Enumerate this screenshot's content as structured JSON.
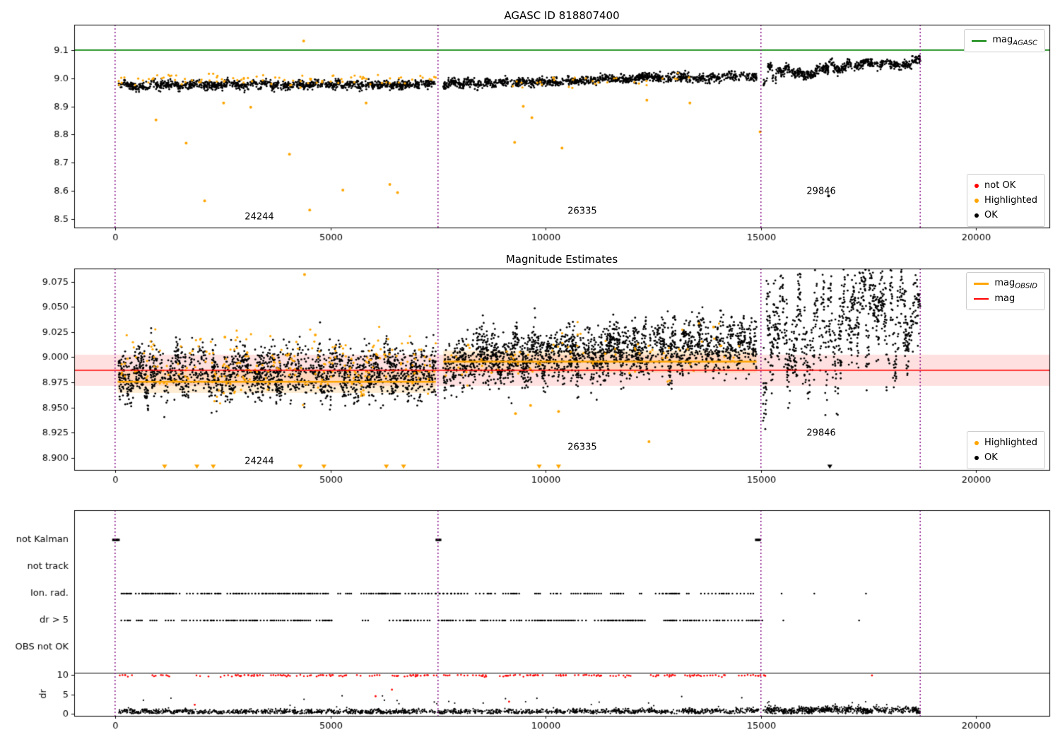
{
  "colors": {
    "ok": "#000000",
    "highlighted": "#FFA500",
    "not_ok": "#FF0000",
    "mag_agasc_line": "#008000",
    "mag_line": "#FF0000",
    "mag_obsid_line": "#FFA500",
    "vline": "#800080"
  },
  "chart_data": [
    {
      "type": "scatter",
      "title": "AGASC ID 818807400",
      "xlim": [
        -950,
        21700
      ],
      "ylim": [
        8.47,
        9.19
      ],
      "xticks": [
        0,
        5000,
        10000,
        15000,
        20000
      ],
      "yticks": [
        8.5,
        8.6,
        8.7,
        8.8,
        8.9,
        9.0,
        9.1
      ],
      "ytick_labels": [
        "8.5",
        "8.6",
        "8.7",
        "8.8",
        "8.9",
        "9.0",
        "9.1"
      ],
      "vlines": [
        0,
        7500,
        15000,
        18700
      ],
      "hlines": [
        {
          "y": 9.1,
          "color_key": "mag_agasc_line"
        }
      ],
      "legend_top": {
        "items": [
          {
            "label_main": "mag",
            "label_sub": "AGASC"
          }
        ]
      },
      "legend_bottom": {
        "items": [
          {
            "label": "not OK",
            "role": "not_ok"
          },
          {
            "label": "Highlighted",
            "role": "highlighted"
          },
          {
            "label": "OK",
            "role": "ok"
          }
        ]
      },
      "annotations": [
        {
          "text": "24244",
          "x": 3350,
          "y": 8.508
        },
        {
          "text": "26335",
          "x": 10850,
          "y": 8.527
        },
        {
          "text": "29846",
          "x": 16400,
          "y": 8.597
        }
      ],
      "series": [
        {
          "role": "ok",
          "kind": "clusters",
          "seed": 11,
          "n": 1150,
          "x0": 80,
          "x1": 7450,
          "mean0": 8.9745,
          "mean1": 8.978,
          "cluster_sigma": 0.004,
          "point_sigma": 0.0075,
          "clusters": 60
        },
        {
          "role": "ok",
          "kind": "clusters",
          "seed": 12,
          "n": 1150,
          "x0": 7620,
          "x1": 14900,
          "mean0": 8.982,
          "mean1": 9.006,
          "cluster_sigma": 0.0045,
          "point_sigma": 0.0075,
          "clusters": 60
        },
        {
          "role": "ok",
          "kind": "clusters",
          "seed": 13,
          "n": 650,
          "x0": 15050,
          "x1": 18700,
          "mean0": 9.018,
          "mean1": 9.06,
          "cluster_sigma": 0.011,
          "point_sigma": 0.008,
          "clusters": 36
        },
        {
          "role": "highlighted",
          "kind": "clusters",
          "seed": 14,
          "n": 100,
          "x0": 80,
          "x1": 7450,
          "mean0": 8.995,
          "mean1": 8.998,
          "cluster_sigma": 0.006,
          "point_sigma": 0.009,
          "clusters": 26
        },
        {
          "role": "highlighted",
          "kind": "clusters",
          "seed": 15,
          "n": 30,
          "x0": 9200,
          "x1": 13500,
          "mean0": 8.99,
          "mean1": 8.995,
          "cluster_sigma": 0.006,
          "point_sigma": 0.008,
          "clusters": 12
        },
        {
          "role": "highlighted",
          "kind": "points",
          "points": [
            [
              950,
              8.852
            ],
            [
              1650,
              8.77
            ],
            [
              2080,
              8.565
            ],
            [
              2520,
              8.912
            ],
            [
              3150,
              8.897
            ],
            [
              4050,
              8.73
            ],
            [
              4380,
              9.132
            ],
            [
              4520,
              8.532
            ],
            [
              5290,
              8.603
            ],
            [
              5830,
              8.912
            ],
            [
              6380,
              8.623
            ],
            [
              6560,
              8.594
            ],
            [
              9280,
              8.772
            ],
            [
              9480,
              8.9
            ],
            [
              9680,
              8.86
            ],
            [
              10380,
              8.752
            ],
            [
              12350,
              8.922
            ],
            [
              13350,
              8.912
            ],
            [
              14980,
              8.81
            ]
          ]
        },
        {
          "role": "ok",
          "kind": "points",
          "points": [
            [
              16570,
              8.582
            ]
          ]
        }
      ]
    },
    {
      "type": "scatter",
      "title": "Magnitude Estimates",
      "xlim": [
        -950,
        21700
      ],
      "ylim": [
        8.888,
        9.088
      ],
      "xticks": [
        0,
        5000,
        10000,
        15000,
        20000
      ],
      "yticks": [
        8.9,
        8.925,
        8.95,
        8.975,
        9.0,
        9.025,
        9.05,
        9.075
      ],
      "ytick_labels": [
        "8.900",
        "8.925",
        "8.950",
        "8.975",
        "9.000",
        "9.025",
        "9.050",
        "9.075"
      ],
      "vlines": [
        0,
        7500,
        15000,
        18700
      ],
      "bands": [
        {
          "y0": 8.9715,
          "y1": 9.0025,
          "color": "rgba(255,0,0,0.12)"
        },
        {
          "x0": 60,
          "x1": 7450,
          "y0": 8.9645,
          "y1": 8.9865,
          "color": "rgba(255,185,80,0.25)"
        },
        {
          "x0": 7620,
          "x1": 14900,
          "y0": 8.9845,
          "y1": 9.0065,
          "color": "rgba(255,185,80,0.25)"
        }
      ],
      "hlines": [
        {
          "y": 8.987,
          "color_key": "mag_line"
        }
      ],
      "line_segments": [
        {
          "x0": 60,
          "x1": 7450,
          "y": 8.9755,
          "color_key": "mag_obsid_line"
        },
        {
          "x0": 7620,
          "x1": 14900,
          "y": 8.9955,
          "color_key": "mag_obsid_line"
        }
      ],
      "legend_top": {
        "items": [
          {
            "label_main": "mag",
            "label_sub": "OBSID"
          },
          {
            "label_main": "mag",
            "label_sub": ""
          }
        ]
      },
      "legend_bottom": {
        "items": [
          {
            "label": "Highlighted",
            "role": "highlighted"
          },
          {
            "label": "OK",
            "role": "ok"
          }
        ]
      },
      "annotations": [
        {
          "text": "24244",
          "x": 3350,
          "y": 8.8965
        },
        {
          "text": "26335",
          "x": 10850,
          "y": 8.9105
        },
        {
          "text": "29846",
          "x": 16400,
          "y": 8.9245
        }
      ],
      "series": [
        {
          "role": "ok",
          "kind": "clusters",
          "seed": 21,
          "n": 2100,
          "x0": 80,
          "x1": 7450,
          "mean0": 8.983,
          "mean1": 8.987,
          "cluster_sigma": 0.007,
          "point_sigma": 0.012,
          "clusters": 85
        },
        {
          "role": "ok",
          "kind": "clusters",
          "seed": 22,
          "n": 2100,
          "x0": 7620,
          "x1": 14900,
          "mean0": 8.994,
          "mean1": 9.013,
          "cluster_sigma": 0.008,
          "point_sigma": 0.012,
          "clusters": 85
        },
        {
          "role": "ok",
          "kind": "clusters",
          "seed": 23,
          "n": 950,
          "x0": 15050,
          "x1": 18700,
          "mean0": 9.012,
          "mean1": 9.058,
          "cluster_sigma": 0.026,
          "point_sigma": 0.018,
          "clusters": 46
        },
        {
          "role": "highlighted",
          "kind": "clusters",
          "seed": 24,
          "n": 260,
          "x0": 80,
          "x1": 7450,
          "mean0": 8.99,
          "mean1": 8.995,
          "cluster_sigma": 0.009,
          "point_sigma": 0.012,
          "clusters": 40
        },
        {
          "role": "highlighted",
          "kind": "clusters",
          "seed": 25,
          "n": 70,
          "x0": 7620,
          "x1": 14500,
          "mean0": 8.998,
          "mean1": 9.004,
          "cluster_sigma": 0.008,
          "point_sigma": 0.011,
          "clusters": 20
        },
        {
          "role": "highlighted",
          "kind": "points",
          "points": [
            [
              4400,
              9.082
            ],
            [
              4650,
              9.022
            ],
            [
              2550,
              9.02
            ],
            [
              9300,
              8.944
            ],
            [
              9650,
              8.952
            ],
            [
              10300,
              8.946
            ],
            [
              12400,
              8.916
            ],
            [
              8200,
              9.012
            ],
            [
              13900,
              9.03
            ]
          ]
        },
        {
          "role": "highlighted",
          "kind": "triangles",
          "y": 8.8915,
          "x": [
            1150,
            1900,
            2280,
            4300,
            4850,
            6300,
            6700,
            9850,
            10300
          ]
        },
        {
          "role": "ok",
          "kind": "triangles",
          "y": 8.8915,
          "x": [
            16600
          ]
        }
      ]
    },
    {
      "type": "flags",
      "categories": [
        "not Kalman",
        "not track",
        "Ion. rad.",
        "dr > 5",
        "OBS not OK"
      ],
      "dr_label": "dr",
      "dr_ticks": [
        0,
        5,
        10
      ],
      "xlim": [
        -950,
        21700
      ],
      "xticks": [
        0,
        5000,
        10000,
        15000,
        20000
      ],
      "vlines": [
        0,
        7500,
        15000,
        18700
      ],
      "hline_dr": 10.45,
      "flag_series": [
        {
          "category": "not Kalman",
          "kind": "flag_points",
          "marker": "square",
          "x": [
            -40,
            0,
            40,
            80,
            7470,
            7510,
            7550,
            14890,
            14930,
            14970
          ]
        },
        {
          "category": "Ion. rad.",
          "kind": "flag_clusters",
          "seed": 31,
          "n": 380,
          "x0": 60,
          "x1": 14950,
          "clusters": 85,
          "skip": 0.33,
          "extra_x": [
            15480,
            16240,
            17440
          ]
        },
        {
          "category": "dr > 5",
          "kind": "flag_clusters",
          "seed": 32,
          "n": 380,
          "x0": 60,
          "x1": 14950,
          "clusters": 85,
          "skip": 0.33,
          "extra_x": [
            15520,
            17280
          ]
        }
      ],
      "dr_series": [
        {
          "role": "not_ok",
          "kind": "dr_red_clusters",
          "seed": 41,
          "x0": 60,
          "x1": 15050,
          "clusters": 95,
          "skip": 0.3
        },
        {
          "role": "not_ok",
          "kind": "dr_points",
          "points": [
            [
              15070,
              9.9
            ],
            [
              15100,
              9.75
            ],
            [
              17580,
              9.85
            ],
            [
              1850,
              2.3
            ],
            [
              6050,
              4.5
            ],
            [
              6430,
              6.2
            ],
            [
              9150,
              3.1
            ]
          ]
        },
        {
          "role": "ok",
          "kind": "clusters",
          "seed": 42,
          "n": 1700,
          "x0": 60,
          "x1": 14950,
          "mean0": 0.55,
          "mean1": 0.62,
          "cluster_sigma": 0.14,
          "point_sigma": 0.3,
          "clusters": 110,
          "clip_min": 0.04
        },
        {
          "role": "ok",
          "kind": "clusters",
          "seed": 43,
          "n": 750,
          "x0": 15050,
          "x1": 18700,
          "mean0": 0.85,
          "mean1": 0.95,
          "cluster_sigma": 0.22,
          "point_sigma": 0.42,
          "clusters": 40,
          "clip_min": 0.04
        },
        {
          "role": "ok",
          "kind": "dr_spikes",
          "seed": 44,
          "n": 28,
          "x0": 60,
          "x1": 14950,
          "ymin": 1.6,
          "ymax": 4.6
        },
        {
          "role": "ok",
          "kind": "dr_spikes",
          "seed": 45,
          "n": 6,
          "x0": 15050,
          "x1": 18700,
          "ymin": 1.8,
          "ymax": 3.2
        }
      ]
    }
  ]
}
